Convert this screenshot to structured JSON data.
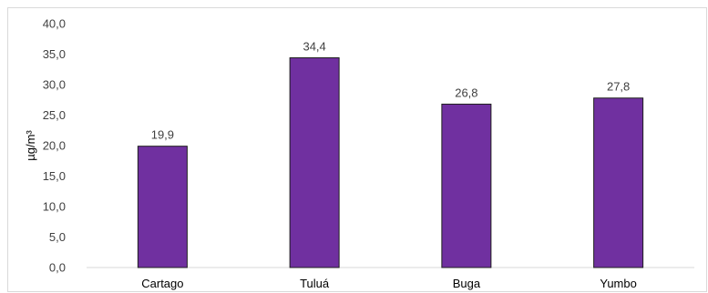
{
  "chart_data": {
    "type": "bar",
    "categories": [
      "Cartago",
      "Tuluá",
      "Buga",
      "Yumbo"
    ],
    "values": [
      19.9,
      34.4,
      26.8,
      27.8
    ],
    "value_labels": [
      "19,9",
      "34,4",
      "26,8",
      "27,8"
    ],
    "title": "",
    "xlabel": "",
    "ylabel": "µg/m³",
    "ylim": [
      0,
      40
    ],
    "yticks": [
      0,
      5,
      10,
      15,
      20,
      25,
      30,
      35,
      40
    ],
    "ytick_labels": [
      "0,0",
      "5,0",
      "10,0",
      "15,0",
      "20,0",
      "25,0",
      "30,0",
      "35,0",
      "40,0"
    ],
    "grid": false,
    "legend": "none",
    "colors": {
      "bar_fill": "#7030a0",
      "bar_stroke": "#1f1f1f",
      "axis": "#d9d9d9"
    }
  }
}
